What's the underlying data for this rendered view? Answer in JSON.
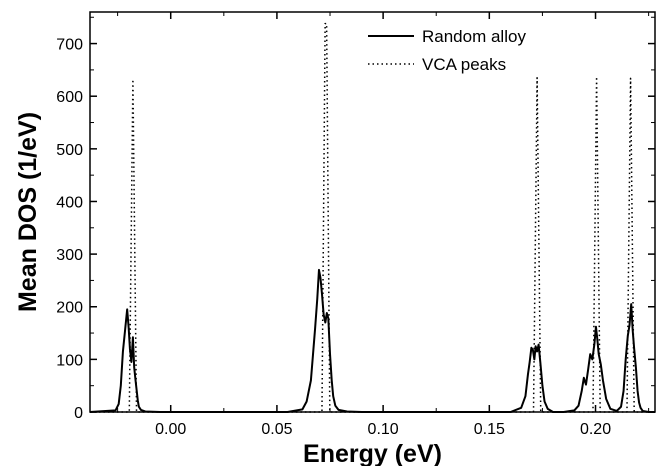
{
  "chart_data": {
    "type": "line",
    "xlabel": "Energy (eV)",
    "ylabel": "Mean DOS (1/eV)",
    "xlim": [
      -0.038,
      0.228
    ],
    "ylim": [
      0,
      760
    ],
    "xticks": [
      0.0,
      0.05,
      0.1,
      0.15,
      0.2
    ],
    "xtick_labels": [
      "0.00",
      "0.05",
      "0.10",
      "0.15",
      "0.20"
    ],
    "yticks": [
      0,
      100,
      200,
      300,
      400,
      500,
      600,
      700
    ],
    "ytick_labels": [
      "0",
      "100",
      "200",
      "300",
      "400",
      "500",
      "600",
      "700"
    ],
    "grid": false,
    "legend_position": "top-right",
    "series": [
      {
        "name": "Random alloy",
        "style": "solid",
        "color": "#000000",
        "x": [
          -0.038,
          -0.026,
          -0.0245,
          -0.0235,
          -0.0225,
          -0.0215,
          -0.0205,
          -0.0198,
          -0.0192,
          -0.0185,
          -0.0178,
          -0.0172,
          -0.0165,
          -0.016,
          -0.0155,
          -0.015,
          -0.014,
          -0.012,
          -0.005,
          0.055,
          0.062,
          0.064,
          0.066,
          0.067,
          0.068,
          0.069,
          0.0698,
          0.0705,
          0.0712,
          0.072,
          0.0728,
          0.0735,
          0.0742,
          0.075,
          0.0758,
          0.0765,
          0.0775,
          0.079,
          0.083,
          0.09,
          0.16,
          0.165,
          0.167,
          0.1682,
          0.169,
          0.1698,
          0.1705,
          0.1712,
          0.1718,
          0.1725,
          0.1732,
          0.174,
          0.175,
          0.176,
          0.1775,
          0.18,
          0.185,
          0.19,
          0.192,
          0.1935,
          0.1945,
          0.1955,
          0.1965,
          0.1975,
          0.1985,
          0.1995,
          0.2002,
          0.2008,
          0.2015,
          0.2025,
          0.2035,
          0.205,
          0.207,
          0.21,
          0.212,
          0.2132,
          0.2142,
          0.2152,
          0.216,
          0.2168,
          0.2175,
          0.2182,
          0.219,
          0.2198,
          0.2205,
          0.2212,
          0.2222,
          0.225,
          0.228
        ],
        "y": [
          0,
          3,
          15,
          50,
          115,
          155,
          195,
          160,
          120,
          95,
          142,
          85,
          58,
          40,
          22,
          10,
          4,
          1,
          0,
          0,
          5,
          20,
          60,
          110,
          160,
          215,
          270,
          255,
          225,
          185,
          170,
          188,
          178,
          110,
          60,
          30,
          12,
          4,
          1,
          0,
          0,
          8,
          30,
          72,
          95,
          122,
          118,
          100,
          125,
          115,
          128,
          95,
          50,
          20,
          6,
          0,
          0,
          3,
          12,
          40,
          65,
          52,
          80,
          110,
          100,
          130,
          162,
          140,
          110,
          90,
          60,
          25,
          6,
          2,
          10,
          40,
          100,
          145,
          165,
          205,
          155,
          120,
          85,
          40,
          18,
          8,
          2,
          0,
          0
        ]
      },
      {
        "name": "VCA peaks",
        "style": "dotted",
        "color": "#000000",
        "x": [
          -0.038,
          -0.0195,
          -0.0178,
          -0.0161,
          0.0712,
          0.0727,
          0.0734,
          0.0749,
          0.1708,
          0.1725,
          0.1742,
          0.1988,
          0.2005,
          0.2022,
          0.2148,
          0.2165,
          0.2182,
          0.228
        ],
        "y": [
          0,
          0,
          632,
          0,
          0,
          738,
          738,
          0,
          0,
          635,
          0,
          0,
          637,
          0,
          0,
          634,
          0,
          0
        ]
      }
    ]
  }
}
